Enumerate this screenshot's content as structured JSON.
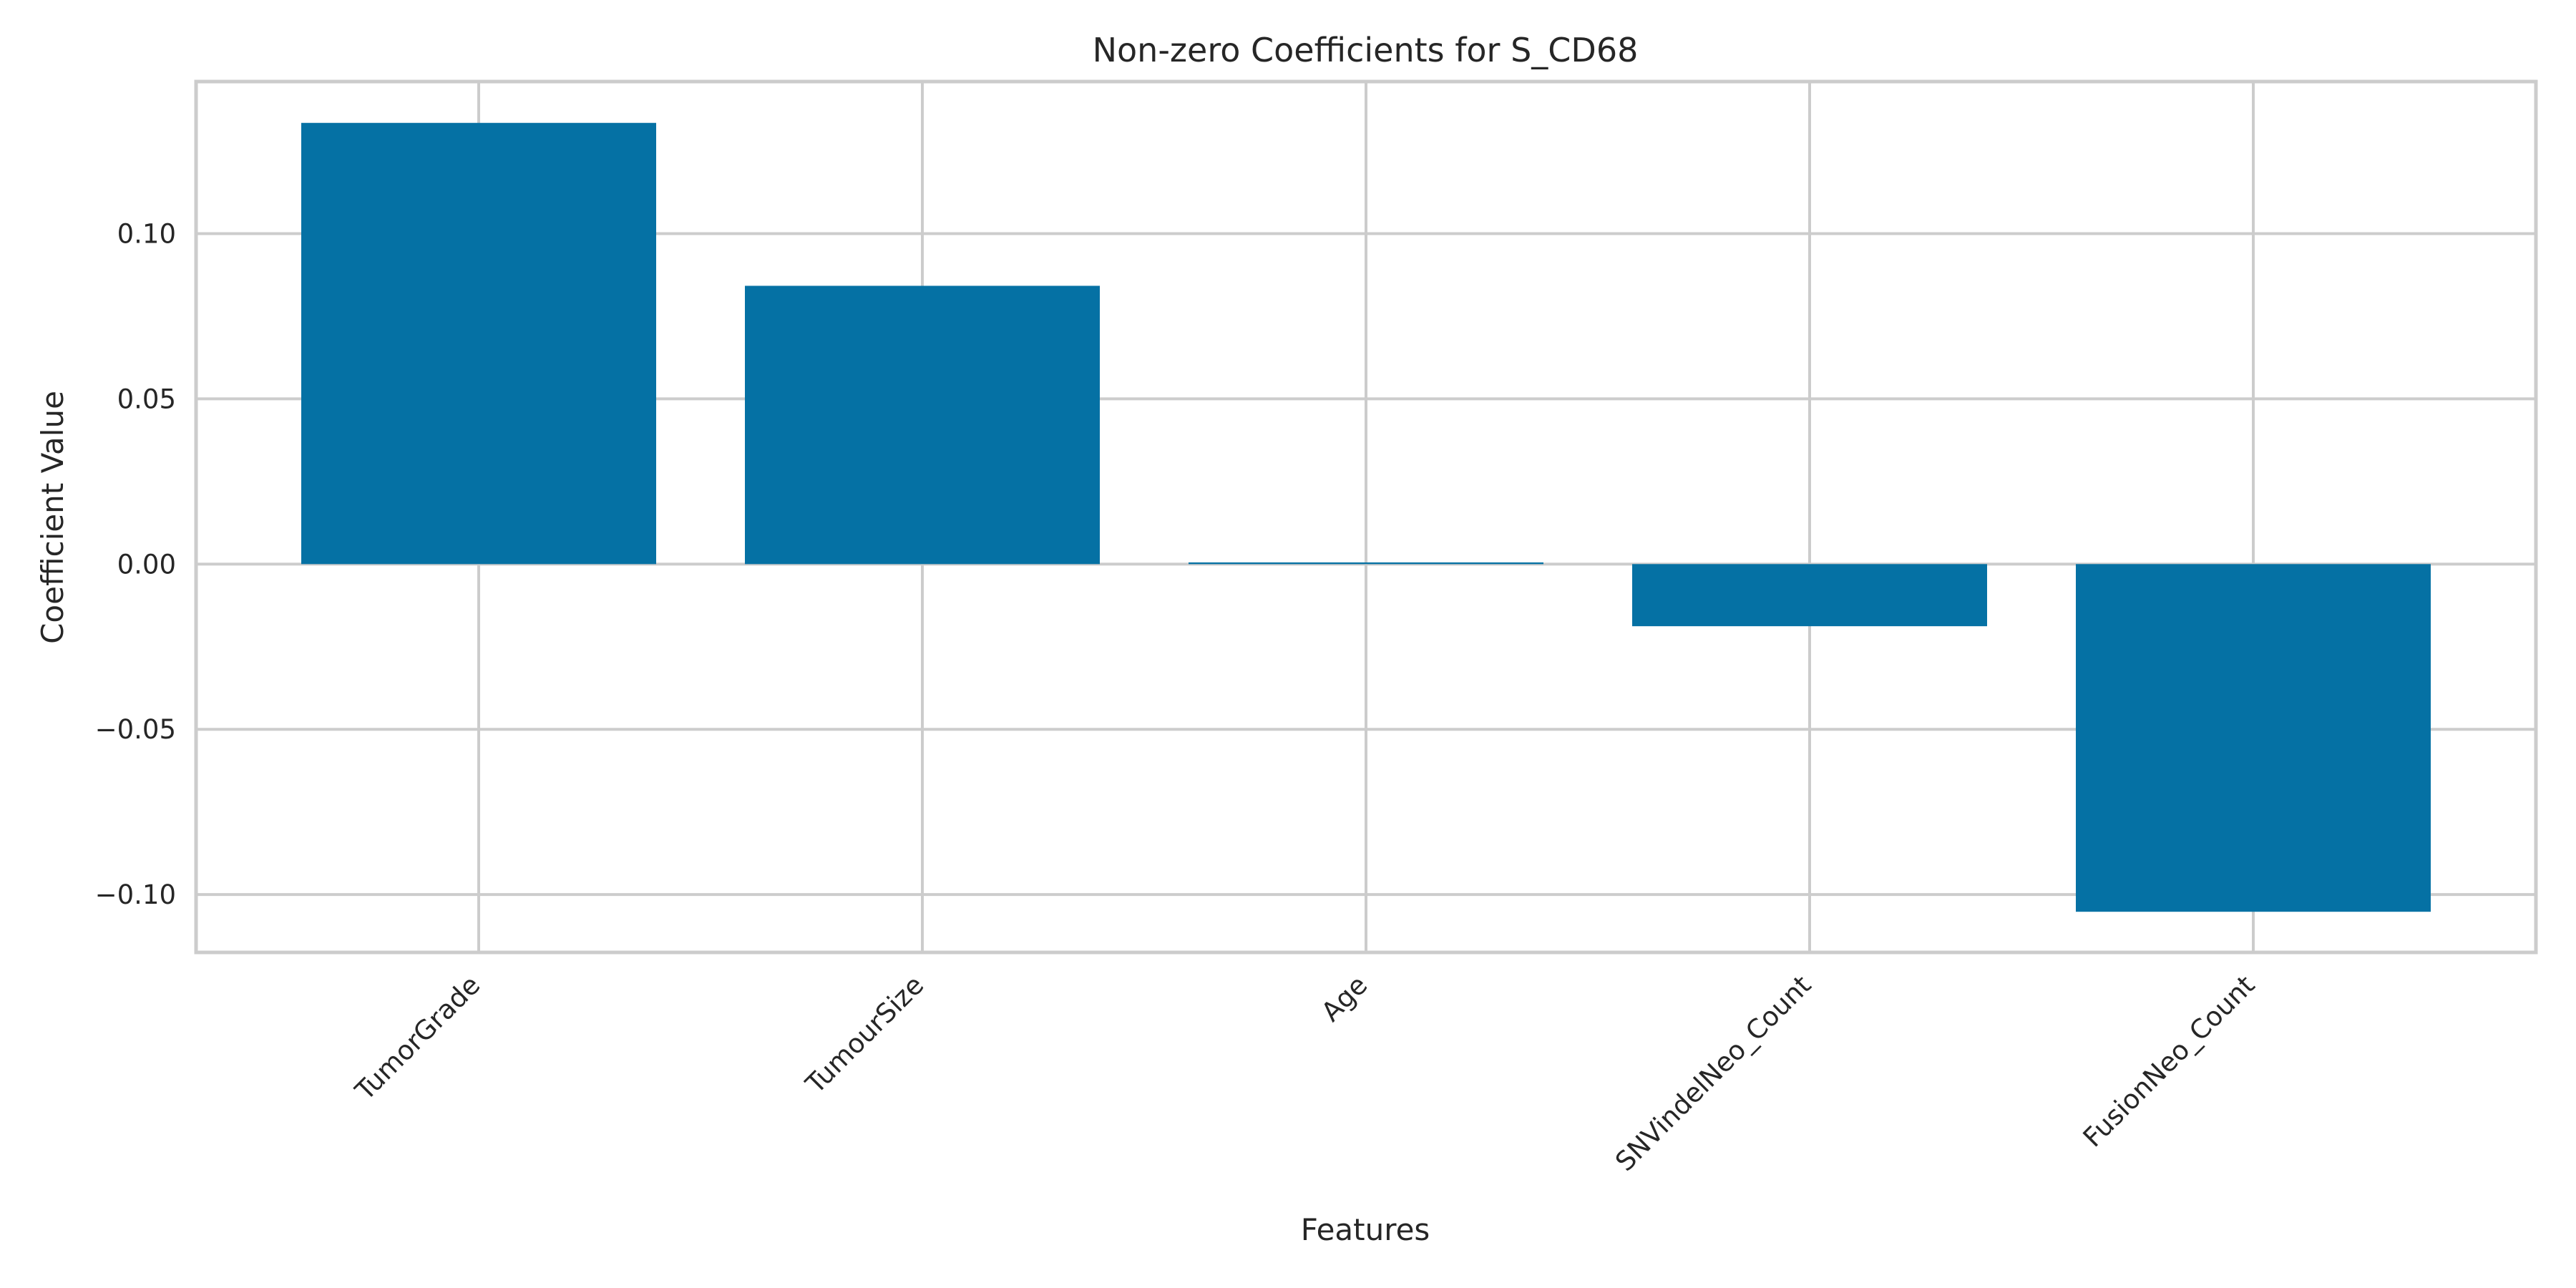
{
  "chart_data": {
    "type": "bar",
    "title": "Non-zero Coefficients for S_CD68",
    "xlabel": "Features",
    "ylabel": "Coefficient Value",
    "categories": [
      "TumorGrade",
      "TumourSize",
      "Age",
      "SNVindelNeo_Count",
      "FusionNeo_Count"
    ],
    "values": [
      0.1335,
      0.0842,
      0.0005,
      -0.0188,
      -0.1052
    ],
    "yticks": [
      {
        "value": 0.1,
        "label": "0.10"
      },
      {
        "value": 0.05,
        "label": "0.05"
      },
      {
        "value": 0.0,
        "label": "0.00"
      },
      {
        "value": -0.05,
        "label": "−0.05"
      },
      {
        "value": -0.1,
        "label": "−0.10"
      }
    ],
    "ylim": [
      -0.1175,
      0.146
    ],
    "grid": true,
    "bar_color": "#0571a4",
    "grid_color": "#cccccc"
  }
}
